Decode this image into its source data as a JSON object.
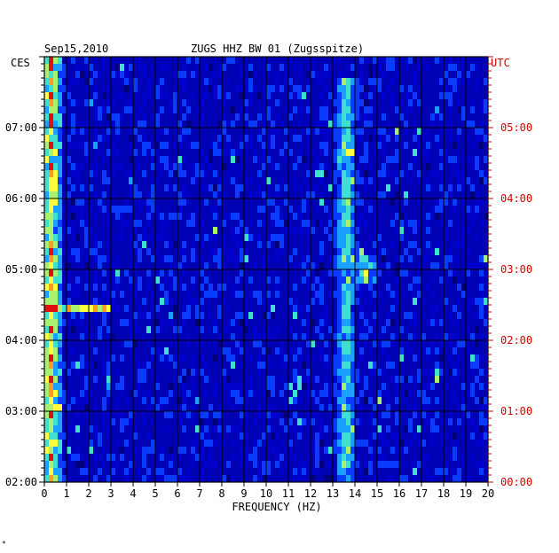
{
  "header": {
    "date": "Sep15,2010",
    "station": "ZUGS HHZ BW 01 (Zugsspitze)"
  },
  "corner_mark": "*",
  "chart_data": {
    "type": "heatmap",
    "title": "ZUGS HHZ BW 01 (Zugsspitze)",
    "date_label": "Sep15,2010",
    "xlabel": "FREQUENCY (HZ)",
    "xlim": [
      0,
      20
    ],
    "x_ticks": [
      "0",
      "1",
      "2",
      "3",
      "4",
      "5",
      "6",
      "7",
      "8",
      "9",
      "10",
      "11",
      "12",
      "13",
      "14",
      "15",
      "16",
      "17",
      "18",
      "19",
      "20"
    ],
    "left_axis": {
      "label": "CES",
      "tick_labels": [
        "02:00",
        "03:00",
        "04:00",
        "05:00",
        "06:00",
        "07:00"
      ],
      "color": "#000000"
    },
    "right_axis": {
      "label": "UTC",
      "tick_labels": [
        "00:00",
        "01:00",
        "02:00",
        "03:00",
        "04:00",
        "05:00"
      ],
      "color": "#d40000"
    },
    "time_range_utc": [
      "00:00",
      "06:00"
    ],
    "grid": true,
    "colormap": [
      "#00007a",
      "#0000c8",
      "#0a3cff",
      "#1aa0ff",
      "#40e0d0",
      "#a8f070",
      "#ffff40",
      "#ff9a20",
      "#e01010"
    ],
    "features": [
      {
        "freq_hz": 0.3,
        "level": "high",
        "time_utc": "00:00-06:00"
      },
      {
        "freq_hz": 13.6,
        "level": "medium",
        "time_utc": "00:00-05:40"
      },
      {
        "freq_range_hz": [
          0,
          3
        ],
        "level": "high",
        "time_utc": "02:27"
      },
      {
        "freq_hz": 14.5,
        "level": "medium",
        "time_utc": "02:50-03:10"
      }
    ]
  }
}
